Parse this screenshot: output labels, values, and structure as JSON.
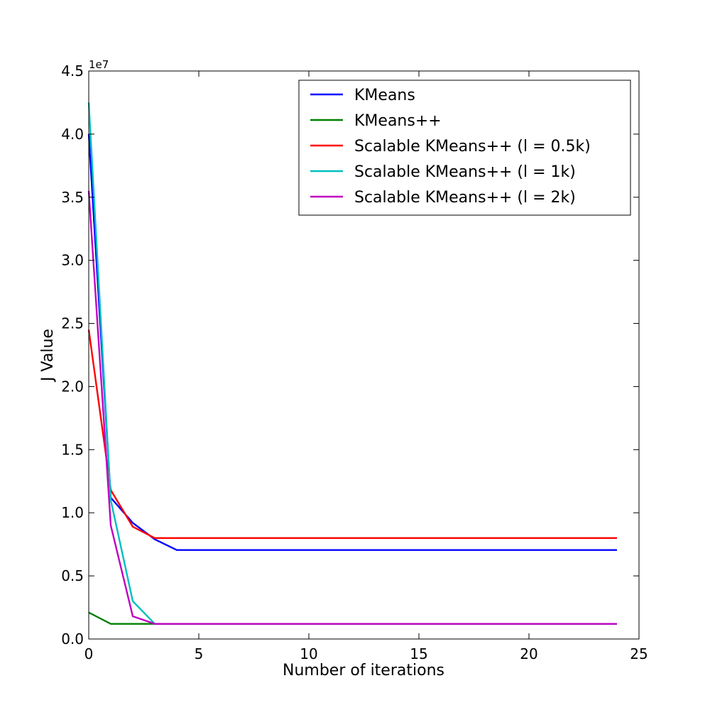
{
  "chart_data": {
    "type": "line",
    "xlabel": "Number of iterations",
    "ylabel": "J Value",
    "y_scale_label": "1e7",
    "xlim": [
      0,
      25
    ],
    "ylim": [
      0,
      45000000
    ],
    "x_ticks": [
      0,
      5,
      10,
      15,
      20,
      25
    ],
    "x_tick_labels": [
      "0",
      "5",
      "10",
      "15",
      "20",
      "25"
    ],
    "y_ticks": [
      0,
      5000000,
      10000000,
      15000000,
      20000000,
      25000000,
      30000000,
      35000000,
      40000000,
      45000000
    ],
    "y_tick_labels": [
      "0.0",
      "0.5",
      "1.0",
      "1.5",
      "2.0",
      "2.5",
      "3.0",
      "3.5",
      "4.0",
      "4.5"
    ],
    "grid": false,
    "legend_position": "top-right",
    "series": [
      {
        "name": "KMeans",
        "color": "#0000ff",
        "x": [
          0,
          1,
          2,
          3,
          4,
          5,
          6,
          7,
          8,
          9,
          10,
          11,
          12,
          13,
          14,
          15,
          16,
          17,
          18,
          19,
          20,
          21,
          22,
          23,
          24
        ],
        "y": [
          40000000,
          11200000,
          9200000,
          7900000,
          7050000,
          7050000,
          7050000,
          7050000,
          7050000,
          7050000,
          7050000,
          7050000,
          7050000,
          7050000,
          7050000,
          7050000,
          7050000,
          7050000,
          7050000,
          7050000,
          7050000,
          7050000,
          7050000,
          7050000,
          7050000
        ]
      },
      {
        "name": "KMeans++",
        "color": "#008000",
        "x": [
          0,
          1,
          2,
          3,
          4,
          5,
          6,
          7,
          8,
          9,
          10,
          11,
          12,
          13,
          14,
          15,
          16,
          17,
          18,
          19,
          20,
          21,
          22,
          23,
          24
        ],
        "y": [
          2100000,
          1200000,
          1200000,
          1200000,
          1200000,
          1200000,
          1200000,
          1200000,
          1200000,
          1200000,
          1200000,
          1200000,
          1200000,
          1200000,
          1200000,
          1200000,
          1200000,
          1200000,
          1200000,
          1200000,
          1200000,
          1200000,
          1200000,
          1200000,
          1200000
        ]
      },
      {
        "name": "Scalable KMeans++ (l = 0.5k)",
        "color": "#ff0000",
        "x": [
          0,
          1,
          2,
          3,
          4,
          5,
          6,
          7,
          8,
          9,
          10,
          11,
          12,
          13,
          14,
          15,
          16,
          17,
          18,
          19,
          20,
          21,
          22,
          23,
          24
        ],
        "y": [
          24500000,
          11800000,
          8900000,
          8000000,
          8000000,
          8000000,
          8000000,
          8000000,
          8000000,
          8000000,
          8000000,
          8000000,
          8000000,
          8000000,
          8000000,
          8000000,
          8000000,
          8000000,
          8000000,
          8000000,
          8000000,
          8000000,
          8000000,
          8000000,
          8000000
        ]
      },
      {
        "name": "Scalable KMeans++ (l = 1k)",
        "color": "#00bfbf",
        "x": [
          0,
          1,
          2,
          3,
          4,
          5,
          6,
          7,
          8,
          9,
          10,
          11,
          12,
          13,
          14,
          15,
          16,
          17,
          18,
          19,
          20,
          21,
          22,
          23,
          24
        ],
        "y": [
          42500000,
          11000000,
          3000000,
          1200000,
          1200000,
          1200000,
          1200000,
          1200000,
          1200000,
          1200000,
          1200000,
          1200000,
          1200000,
          1200000,
          1200000,
          1200000,
          1200000,
          1200000,
          1200000,
          1200000,
          1200000,
          1200000,
          1200000,
          1200000,
          1200000
        ]
      },
      {
        "name": "Scalable KMeans++ (l = 2k)",
        "color": "#bf00bf",
        "x": [
          0,
          1,
          2,
          3,
          4,
          5,
          6,
          7,
          8,
          9,
          10,
          11,
          12,
          13,
          14,
          15,
          16,
          17,
          18,
          19,
          20,
          21,
          22,
          23,
          24
        ],
        "y": [
          35500000,
          9000000,
          1800000,
          1200000,
          1200000,
          1200000,
          1200000,
          1200000,
          1200000,
          1200000,
          1200000,
          1200000,
          1200000,
          1200000,
          1200000,
          1200000,
          1200000,
          1200000,
          1200000,
          1200000,
          1200000,
          1200000,
          1200000,
          1200000,
          1200000
        ]
      }
    ]
  }
}
